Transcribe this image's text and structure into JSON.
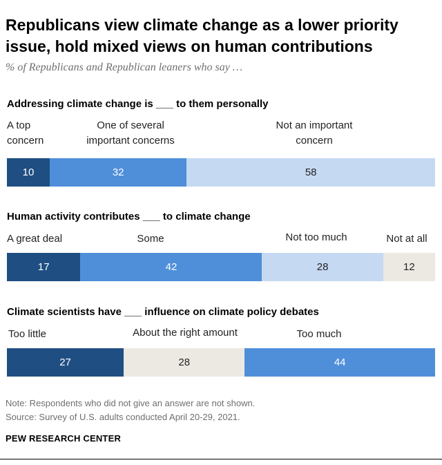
{
  "header": {
    "title": "Republicans view climate change as a lower priority issue, hold mixed views on human contributions",
    "subtitle": "% of Republicans and Republican leaners who say …"
  },
  "chart_data": [
    {
      "type": "bar",
      "orientation": "horizontal-stacked",
      "title": "Addressing climate change is ___ to them personally",
      "categories": [
        "A top concern",
        "One of several important concerns",
        "Not an important concern"
      ],
      "category_labels": [
        [
          "A top",
          "concern"
        ],
        [
          "One of several",
          "important concerns"
        ],
        [
          "Not an important",
          "concern"
        ]
      ],
      "values": [
        10,
        32,
        58
      ],
      "colors": [
        "#1f4e82",
        "#4f8fda",
        "#c6d9f2"
      ]
    },
    {
      "type": "bar",
      "orientation": "horizontal-stacked",
      "title": "Human activity contributes ___ to climate change",
      "categories": [
        "A great deal",
        "Some",
        "Not too much",
        "Not at all"
      ],
      "category_labels": [
        [
          "A great deal"
        ],
        [
          "Some"
        ],
        [
          "Not too much"
        ],
        [
          "Not at all"
        ]
      ],
      "values": [
        17,
        42,
        28,
        12
      ],
      "colors": [
        "#1f4e82",
        "#4f8fda",
        "#c6d9f2",
        "#ece9e3"
      ]
    },
    {
      "type": "bar",
      "orientation": "horizontal-stacked",
      "title": "Climate scientists have ___ influence on climate policy debates",
      "categories": [
        "Too little",
        "About the right amount",
        "Too much"
      ],
      "category_labels": [
        [
          "Too little"
        ],
        [
          "About the right amount"
        ],
        [
          "Too much"
        ]
      ],
      "values": [
        27,
        28,
        44
      ],
      "colors": [
        "#1f4e82",
        "#ece9e3",
        "#4f8fda"
      ]
    }
  ],
  "footer": {
    "note": "Note: Respondents who did not give an answer are not shown.",
    "source": "Source: Survey of U.S. adults conducted April 20-29, 2021.",
    "brand": "PEW RESEARCH CENTER"
  }
}
